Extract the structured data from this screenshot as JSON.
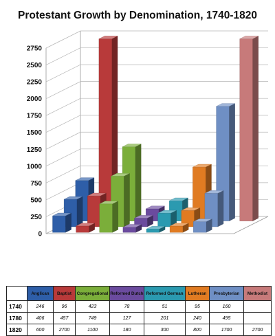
{
  "chart_data": {
    "type": "bar",
    "title": "Protestant Growth by Denomination, 1740-1820",
    "categories": [
      "Anglican",
      "Baptist",
      "Congregational",
      "Reformed Dutch",
      "Reformed German",
      "Lutheran",
      "Presbyterian",
      "Methodist"
    ],
    "category_colors": [
      "#2e5ea8",
      "#b83a3a",
      "#7bae3a",
      "#6b4b9e",
      "#2b9ab0",
      "#e07b22",
      "#6f8fc4",
      "#c77a7a"
    ],
    "series": [
      {
        "name": "1740",
        "values": [
          246,
          96,
          423,
          78,
          51,
          95,
          160,
          null
        ]
      },
      {
        "name": "1780",
        "values": [
          406,
          457,
          749,
          127,
          201,
          240,
          495,
          null
        ]
      },
      {
        "name": "1820",
        "values": [
          600,
          2700,
          1100,
          180,
          300,
          800,
          1700,
          2700
        ]
      }
    ],
    "ylim": [
      0,
      2750
    ],
    "yticks": [
      "0",
      "250",
      "500",
      "750",
      "1000",
      "1250",
      "1500",
      "1750",
      "2000",
      "2250",
      "2500",
      "2750"
    ],
    "grid": true,
    "table": {
      "rows": [
        {
          "label": "1740",
          "cells": [
            "246",
            "96",
            "423",
            "78",
            "51",
            "95",
            "160",
            ""
          ]
        },
        {
          "label": "1780",
          "cells": [
            "406",
            "457",
            "749",
            "127",
            "201",
            "240",
            "495",
            ""
          ]
        },
        {
          "label": "1820",
          "cells": [
            "600",
            "2700",
            "1100",
            "180",
            "300",
            "800",
            "1700",
            "2700"
          ]
        }
      ]
    }
  }
}
